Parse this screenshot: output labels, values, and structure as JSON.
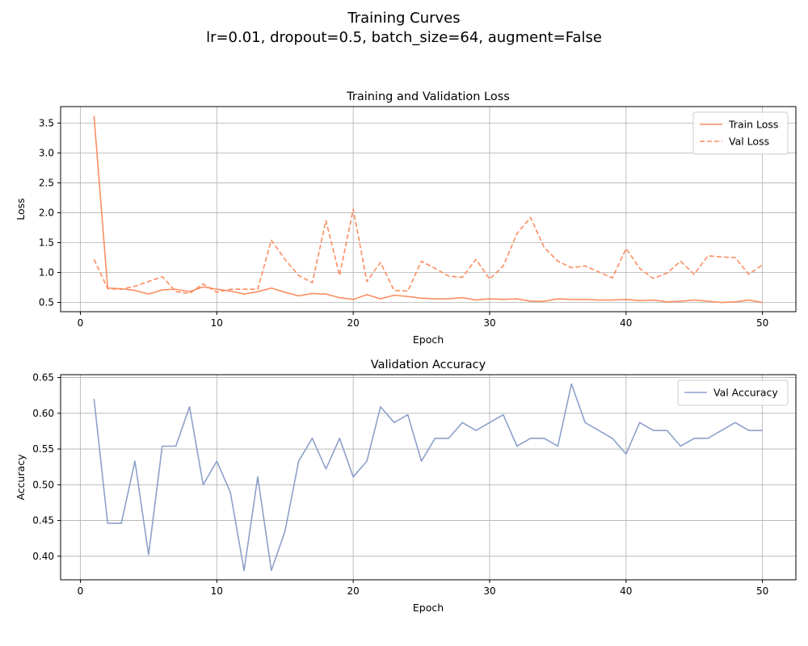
{
  "figure": {
    "suptitle_line1": "Training Curves",
    "suptitle_line2": "lr=0.01, dropout=0.5, batch_size=64, augment=False"
  },
  "colors": {
    "loss": "#fc8d62",
    "accuracy": "#8da0cb",
    "grid": "#b0b0b0",
    "axis": "#000000"
  },
  "chart_data": [
    {
      "type": "line",
      "title": "Training and Validation Loss",
      "xlabel": "Epoch",
      "ylabel": "Loss",
      "xlim": [
        -1.45,
        52.45
      ],
      "ylim": [
        0.345,
        3.775
      ],
      "xticks": [
        0,
        10,
        20,
        30,
        40,
        50
      ],
      "yticks": [
        0.5,
        1.0,
        1.5,
        2.0,
        2.5,
        3.0,
        3.5
      ],
      "ytick_labels": [
        "0.5",
        "1.0",
        "1.5",
        "2.0",
        "2.5",
        "3.0",
        "3.5"
      ],
      "grid": true,
      "legend": "upper right",
      "x": [
        1,
        2,
        3,
        4,
        5,
        6,
        7,
        8,
        9,
        10,
        11,
        12,
        13,
        14,
        15,
        16,
        17,
        18,
        19,
        20,
        21,
        22,
        23,
        24,
        25,
        26,
        27,
        28,
        29,
        30,
        31,
        32,
        33,
        34,
        35,
        36,
        37,
        38,
        39,
        40,
        41,
        42,
        43,
        44,
        45,
        46,
        47,
        48,
        49,
        50
      ],
      "series": [
        {
          "name": "Train Loss",
          "style": "solid",
          "values": [
            3.62,
            0.74,
            0.73,
            0.7,
            0.64,
            0.71,
            0.72,
            0.68,
            0.76,
            0.72,
            0.69,
            0.64,
            0.68,
            0.74,
            0.67,
            0.61,
            0.65,
            0.64,
            0.58,
            0.55,
            0.63,
            0.56,
            0.62,
            0.6,
            0.57,
            0.56,
            0.56,
            0.58,
            0.54,
            0.56,
            0.55,
            0.56,
            0.52,
            0.52,
            0.56,
            0.55,
            0.55,
            0.54,
            0.54,
            0.55,
            0.53,
            0.54,
            0.51,
            0.52,
            0.54,
            0.52,
            0.5,
            0.51,
            0.54,
            0.5
          ]
        },
        {
          "name": "Val Loss",
          "style": "dashed",
          "values": [
            1.22,
            0.73,
            0.72,
            0.77,
            0.85,
            0.93,
            0.68,
            0.65,
            0.81,
            0.67,
            0.72,
            0.72,
            0.72,
            1.54,
            1.22,
            0.95,
            0.83,
            1.87,
            0.95,
            2.06,
            0.85,
            1.17,
            0.7,
            0.69,
            1.19,
            1.07,
            0.94,
            0.92,
            1.22,
            0.89,
            1.11,
            1.65,
            1.92,
            1.42,
            1.19,
            1.08,
            1.11,
            1.01,
            0.91,
            1.4,
            1.07,
            0.9,
            0.99,
            1.19,
            0.97,
            1.28,
            1.26,
            1.25,
            0.97,
            1.13
          ]
        }
      ]
    },
    {
      "type": "line",
      "title": "Validation Accuracy",
      "xlabel": "Epoch",
      "ylabel": "Accuracy",
      "xlim": [
        -1.45,
        52.45
      ],
      "ylim": [
        0.367,
        0.654
      ],
      "xticks": [
        0,
        10,
        20,
        30,
        40,
        50
      ],
      "yticks": [
        0.4,
        0.45,
        0.5,
        0.55,
        0.6,
        0.65
      ],
      "ytick_labels": [
        "0.40",
        "0.45",
        "0.50",
        "0.55",
        "0.60",
        "0.65"
      ],
      "grid": true,
      "legend": "upper right",
      "x": [
        1,
        2,
        3,
        4,
        5,
        6,
        7,
        8,
        9,
        10,
        11,
        12,
        13,
        14,
        15,
        16,
        17,
        18,
        19,
        20,
        21,
        22,
        23,
        24,
        25,
        26,
        27,
        28,
        29,
        30,
        31,
        32,
        33,
        34,
        35,
        36,
        37,
        38,
        39,
        40,
        41,
        42,
        43,
        44,
        45,
        46,
        47,
        48,
        49,
        50
      ],
      "series": [
        {
          "name": "Val Accuracy",
          "style": "solid",
          "values": [
            0.62,
            0.446,
            0.446,
            0.533,
            0.402,
            0.554,
            0.554,
            0.609,
            0.5,
            0.533,
            0.489,
            0.38,
            0.511,
            0.38,
            0.435,
            0.533,
            0.565,
            0.522,
            0.565,
            0.511,
            0.533,
            0.609,
            0.587,
            0.598,
            0.533,
            0.565,
            0.565,
            0.587,
            0.576,
            0.587,
            0.598,
            0.554,
            0.565,
            0.565,
            0.554,
            0.641,
            0.587,
            0.576,
            0.565,
            0.543,
            0.587,
            0.576,
            0.576,
            0.554,
            0.565,
            0.565,
            0.576,
            0.587,
            0.576,
            0.576
          ]
        }
      ]
    }
  ]
}
